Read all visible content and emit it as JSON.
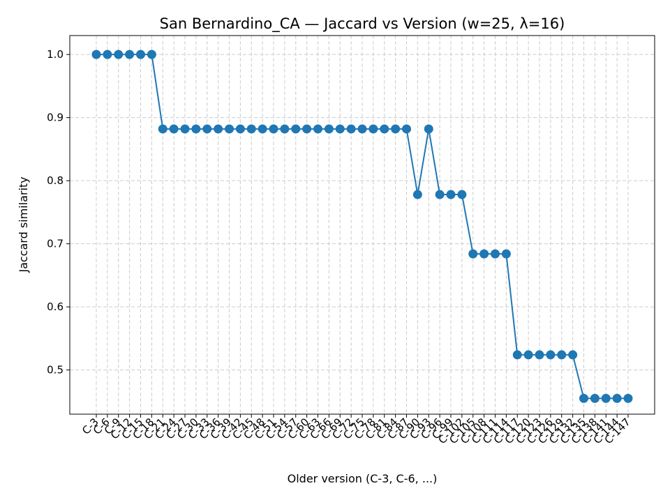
{
  "chart_data": {
    "type": "line",
    "title": "San Bernardino_CA — Jaccard vs Version (w=25, λ=16)",
    "xlabel": "Older version (C-3, C-6, ...)",
    "ylabel": "Jaccard similarity",
    "ylim": [
      0.43,
      1.03
    ],
    "yticks": [
      "0.5",
      "0.6",
      "0.7",
      "0.8",
      "0.9",
      "1.0"
    ],
    "grid": true,
    "color": "#1f77b4",
    "x": [
      "C-3",
      "C-6",
      "C-9",
      "C-12",
      "C-15",
      "C-18",
      "C-21",
      "C-24",
      "C-27",
      "C-30",
      "C-33",
      "C-36",
      "C-39",
      "C-42",
      "C-45",
      "C-48",
      "C-51",
      "C-54",
      "C-57",
      "C-60",
      "C-63",
      "C-66",
      "C-69",
      "C-72",
      "C-75",
      "C-78",
      "C-81",
      "C-84",
      "C-87",
      "C-90",
      "C-93",
      "C-96",
      "C-99",
      "C-102",
      "C-105",
      "C-108",
      "C-111",
      "C-114",
      "C-117",
      "C-120",
      "C-123",
      "C-126",
      "C-129",
      "C-132",
      "C-135",
      "C-138",
      "C-141",
      "C-144",
      "C-147"
    ],
    "values": [
      1.0,
      1.0,
      1.0,
      1.0,
      1.0,
      1.0,
      0.882,
      0.882,
      0.882,
      0.882,
      0.882,
      0.882,
      0.882,
      0.882,
      0.882,
      0.882,
      0.882,
      0.882,
      0.882,
      0.882,
      0.882,
      0.882,
      0.882,
      0.882,
      0.882,
      0.882,
      0.882,
      0.882,
      0.882,
      0.778,
      0.882,
      0.778,
      0.778,
      0.778,
      0.684,
      0.684,
      0.684,
      0.684,
      0.524,
      0.524,
      0.524,
      0.524,
      0.524,
      0.524,
      0.455,
      0.455,
      0.455,
      0.455,
      0.455
    ]
  }
}
